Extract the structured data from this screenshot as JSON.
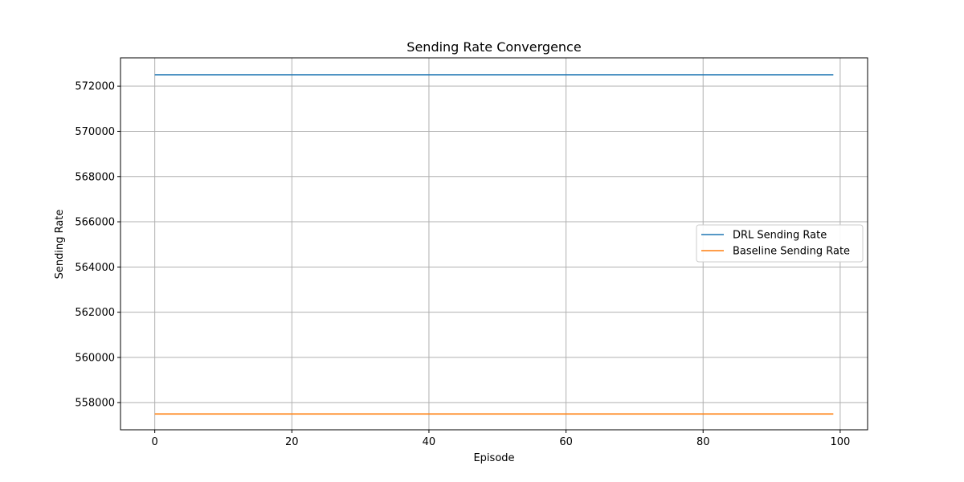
{
  "chart_data": {
    "type": "line",
    "title": "Sending Rate Convergence",
    "xlabel": "Episode",
    "ylabel": "Sending Rate",
    "xlim": [
      -5,
      104
    ],
    "ylim": [
      556800,
      573250
    ],
    "xticks": [
      0,
      20,
      40,
      60,
      80,
      100
    ],
    "yticks": [
      558000,
      560000,
      562000,
      564000,
      566000,
      568000,
      570000,
      572000
    ],
    "x": [
      0,
      99
    ],
    "series": [
      {
        "name": "DRL Sending Rate",
        "color": "#1f77b4",
        "values": [
          572500,
          572500
        ]
      },
      {
        "name": "Baseline Sending Rate",
        "color": "#ff7f0e",
        "values": [
          557500,
          557500
        ]
      }
    ],
    "grid": true,
    "legend_position": "center-right"
  }
}
